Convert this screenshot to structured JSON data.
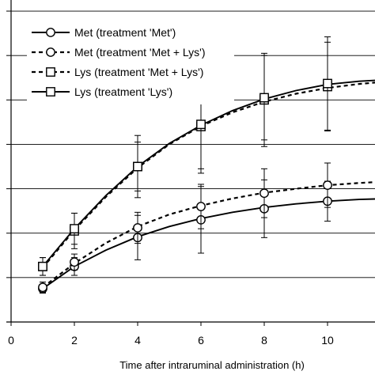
{
  "chart_data": {
    "type": "line",
    "title": "",
    "xlabel": "Time after intraruminal administration (h)",
    "ylabel": "",
    "xlim": [
      0,
      11.5
    ],
    "ylim": [
      0,
      7.25
    ],
    "x_ticks": [
      0,
      2,
      4,
      6,
      8,
      10
    ],
    "y_gridlines": [
      1,
      2,
      3,
      4,
      5,
      6,
      7
    ],
    "grid": "horizontal",
    "legend_position": "top-left",
    "series": [
      {
        "name": "Met (treatment 'Met')",
        "marker": "circle",
        "line": "solid",
        "x": [
          1,
          2,
          4,
          6,
          8,
          10
        ],
        "y": [
          0.75,
          1.25,
          1.9,
          2.3,
          2.55,
          2.72
        ],
        "err": [
          0.1,
          0.2,
          0.5,
          0.75,
          0.65,
          0.45
        ],
        "curve": [
          [
            1,
            0.75
          ],
          [
            2,
            1.25
          ],
          [
            3,
            1.62
          ],
          [
            4,
            1.92
          ],
          [
            5,
            2.15
          ],
          [
            6,
            2.33
          ],
          [
            7,
            2.47
          ],
          [
            8,
            2.58
          ],
          [
            9,
            2.66
          ],
          [
            10,
            2.72
          ],
          [
            11,
            2.76
          ],
          [
            11.5,
            2.77
          ]
        ]
      },
      {
        "name": "Met (treatment 'Met + Lys')",
        "marker": "circle",
        "line": "dashed",
        "x": [
          1,
          2,
          4,
          6,
          8,
          10
        ],
        "y": [
          0.78,
          1.35,
          2.12,
          2.6,
          2.9,
          3.08
        ],
        "err": [
          0.12,
          0.18,
          0.35,
          0.5,
          0.55,
          0.5
        ],
        "curve": [
          [
            1,
            0.78
          ],
          [
            2,
            1.32
          ],
          [
            3,
            1.78
          ],
          [
            4,
            2.15
          ],
          [
            5,
            2.42
          ],
          [
            6,
            2.62
          ],
          [
            7,
            2.78
          ],
          [
            8,
            2.91
          ],
          [
            9,
            3.0
          ],
          [
            10,
            3.08
          ],
          [
            11,
            3.13
          ],
          [
            11.5,
            3.15
          ]
        ]
      },
      {
        "name": "Lys (treatment 'Met + Lys')",
        "marker": "square",
        "line": "dashed",
        "x": [
          1,
          2,
          4,
          6,
          8,
          10
        ],
        "y": [
          1.25,
          2.05,
          3.5,
          4.4,
          5.0,
          5.3
        ],
        "err": [
          0.2,
          0.4,
          0.7,
          1.05,
          1.05,
          1.0
        ],
        "curve": [
          [
            1,
            1.22
          ],
          [
            2,
            2.07
          ],
          [
            3,
            2.82
          ],
          [
            4,
            3.47
          ],
          [
            5,
            4.0
          ],
          [
            6,
            4.41
          ],
          [
            7,
            4.72
          ],
          [
            8,
            4.96
          ],
          [
            9,
            5.14
          ],
          [
            10,
            5.27
          ],
          [
            11,
            5.36
          ],
          [
            11.5,
            5.39
          ]
        ]
      },
      {
        "name": "Lys (treatment 'Lys')",
        "marker": "square",
        "line": "solid",
        "x": [
          1,
          2,
          4,
          6,
          8,
          10
        ],
        "y": [
          1.25,
          2.1,
          3.5,
          4.45,
          5.05,
          5.37
        ],
        "err": [
          0.2,
          0.35,
          0.55,
          1.0,
          0.95,
          1.05
        ],
        "curve": [
          [
            1,
            1.25
          ],
          [
            2,
            2.1
          ],
          [
            3,
            2.85
          ],
          [
            4,
            3.5
          ],
          [
            5,
            4.02
          ],
          [
            6,
            4.43
          ],
          [
            7,
            4.76
          ],
          [
            8,
            5.02
          ],
          [
            9,
            5.21
          ],
          [
            10,
            5.35
          ],
          [
            11,
            5.42
          ],
          [
            11.5,
            5.44
          ]
        ]
      }
    ]
  }
}
